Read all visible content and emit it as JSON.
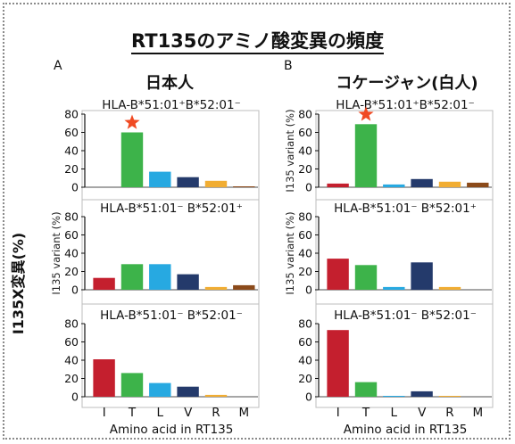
{
  "figure": {
    "title": "RT135のアミノ酸変異の頻度",
    "y_label_big": "I135X変異(%)"
  },
  "columns": [
    {
      "letter": "A",
      "heading": "日本人"
    },
    {
      "letter": "B",
      "heading": "コケージャン(白人)"
    }
  ],
  "colors": {
    "I": "#c41f2e",
    "T": "#3db34a",
    "L": "#27a9e1",
    "V": "#243a6b",
    "R": "#f1ad32",
    "M": "#8b4a1a",
    "star": "#f04a23"
  },
  "chart_data": [
    {
      "type": "bar",
      "column": 0,
      "row": 0,
      "panel_title": "HLA-B*51:01⁺B*52:01⁻",
      "categories": [
        "I",
        "T",
        "L",
        "V",
        "R",
        "M"
      ],
      "values": [
        0,
        60,
        17,
        11,
        7,
        1
      ],
      "ylim": [
        0,
        80
      ],
      "yticks": [
        0,
        20,
        40,
        60,
        80
      ],
      "ylabel": "",
      "xlabel": "",
      "star_on": "T"
    },
    {
      "type": "bar",
      "column": 0,
      "row": 1,
      "panel_title": "HLA-B*51:01⁻ B*52:01⁺",
      "categories": [
        "I",
        "T",
        "L",
        "V",
        "R",
        "M"
      ],
      "values": [
        13,
        28,
        28,
        17,
        3,
        5
      ],
      "ylim": [
        0,
        80
      ],
      "yticks": [
        0,
        20,
        40,
        60,
        80
      ],
      "ylabel": "",
      "xlabel": ""
    },
    {
      "type": "bar",
      "column": 0,
      "row": 2,
      "panel_title": "HLA-B*51:01⁻ B*52:01⁻",
      "categories": [
        "I",
        "T",
        "L",
        "V",
        "R",
        "M"
      ],
      "values": [
        41,
        26,
        15,
        11,
        2,
        0
      ],
      "ylim": [
        0,
        80
      ],
      "yticks": [
        0,
        20,
        40,
        60,
        80
      ],
      "ylabel": "",
      "xlabel": "Amino acid in RT135"
    },
    {
      "type": "bar",
      "column": 1,
      "row": 0,
      "panel_title": "HLA-B*51:01⁺B*52:01⁻",
      "categories": [
        "I",
        "T",
        "L",
        "V",
        "R",
        "M"
      ],
      "values": [
        4,
        69,
        3,
        9,
        6,
        5
      ],
      "ylim": [
        0,
        80
      ],
      "yticks": [
        0,
        20,
        40,
        60,
        80
      ],
      "ylabel": "",
      "xlabel": "",
      "star_on": "T"
    },
    {
      "type": "bar",
      "column": 1,
      "row": 1,
      "panel_title": "HLA-B*51:01⁻ B*52:01⁺",
      "categories": [
        "I",
        "T",
        "L",
        "V",
        "R",
        "M"
      ],
      "values": [
        34,
        27,
        3,
        30,
        3,
        0
      ],
      "ylim": [
        0,
        80
      ],
      "yticks": [
        0,
        20,
        40,
        60,
        80
      ],
      "ylabel": "I135 variant (%)",
      "xlabel": ""
    },
    {
      "type": "bar",
      "column": 1,
      "row": 2,
      "panel_title": "HLA-B*51:01⁻ B*52:01⁻",
      "categories": [
        "I",
        "T",
        "L",
        "V",
        "R",
        "M"
      ],
      "values": [
        73,
        16,
        1,
        6,
        1,
        0
      ],
      "ylim": [
        0,
        80
      ],
      "yticks": [
        0,
        20,
        40,
        60,
        80
      ],
      "ylabel": "",
      "xlabel": "Amino acid in RT135"
    }
  ],
  "left_column_middle_ylabel": "I135 variant (%)",
  "right_column_top_ylabel": "I135 variant (%)"
}
